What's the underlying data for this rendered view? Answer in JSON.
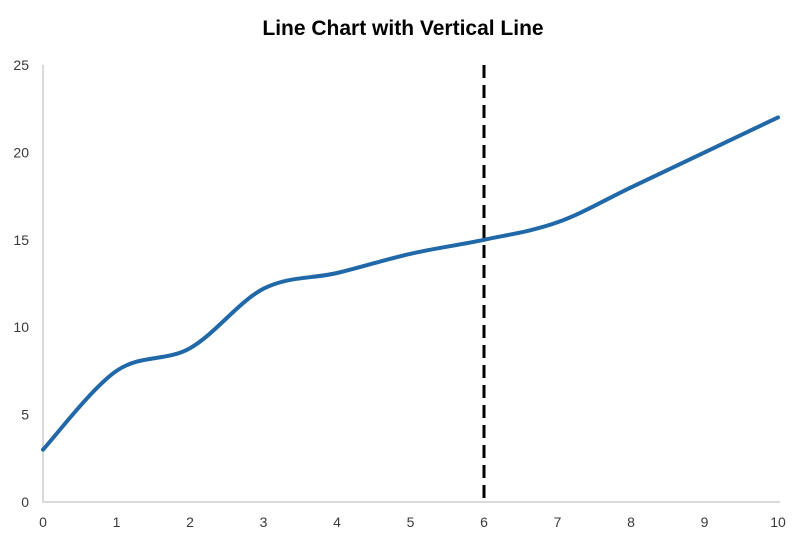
{
  "chart_data": {
    "type": "line",
    "title": "Line Chart with Vertical Line",
    "x": [
      0,
      1,
      2,
      3,
      4,
      5,
      6,
      7,
      8,
      9,
      10
    ],
    "y": [
      3,
      7.5,
      8.8,
      12.2,
      13.1,
      14.2,
      15,
      16,
      18,
      20,
      22
    ],
    "smooth": true,
    "xlim": [
      0,
      10
    ],
    "ylim": [
      0,
      25
    ],
    "x_tick_values": [
      0,
      1,
      2,
      3,
      4,
      5,
      6,
      7,
      8,
      9,
      10
    ],
    "x_tick_labels": [
      "0",
      "1",
      "2",
      "3",
      "4",
      "5",
      "6",
      "7",
      "8",
      "9",
      "10"
    ],
    "y_tick_values": [
      0,
      5,
      10,
      15,
      20,
      25
    ],
    "y_tick_labels": [
      "0",
      "5",
      "10",
      "15",
      "20",
      "25"
    ],
    "grid": false,
    "legend": "none",
    "vertical_line": {
      "x": 6,
      "style": "dashed"
    },
    "colors": {
      "line": "#2068a8",
      "vline": "#000000",
      "axis": "#d9d9d9",
      "tick_label": "#3a3a3a",
      "title": "#000000",
      "background": "#ffffff"
    }
  }
}
